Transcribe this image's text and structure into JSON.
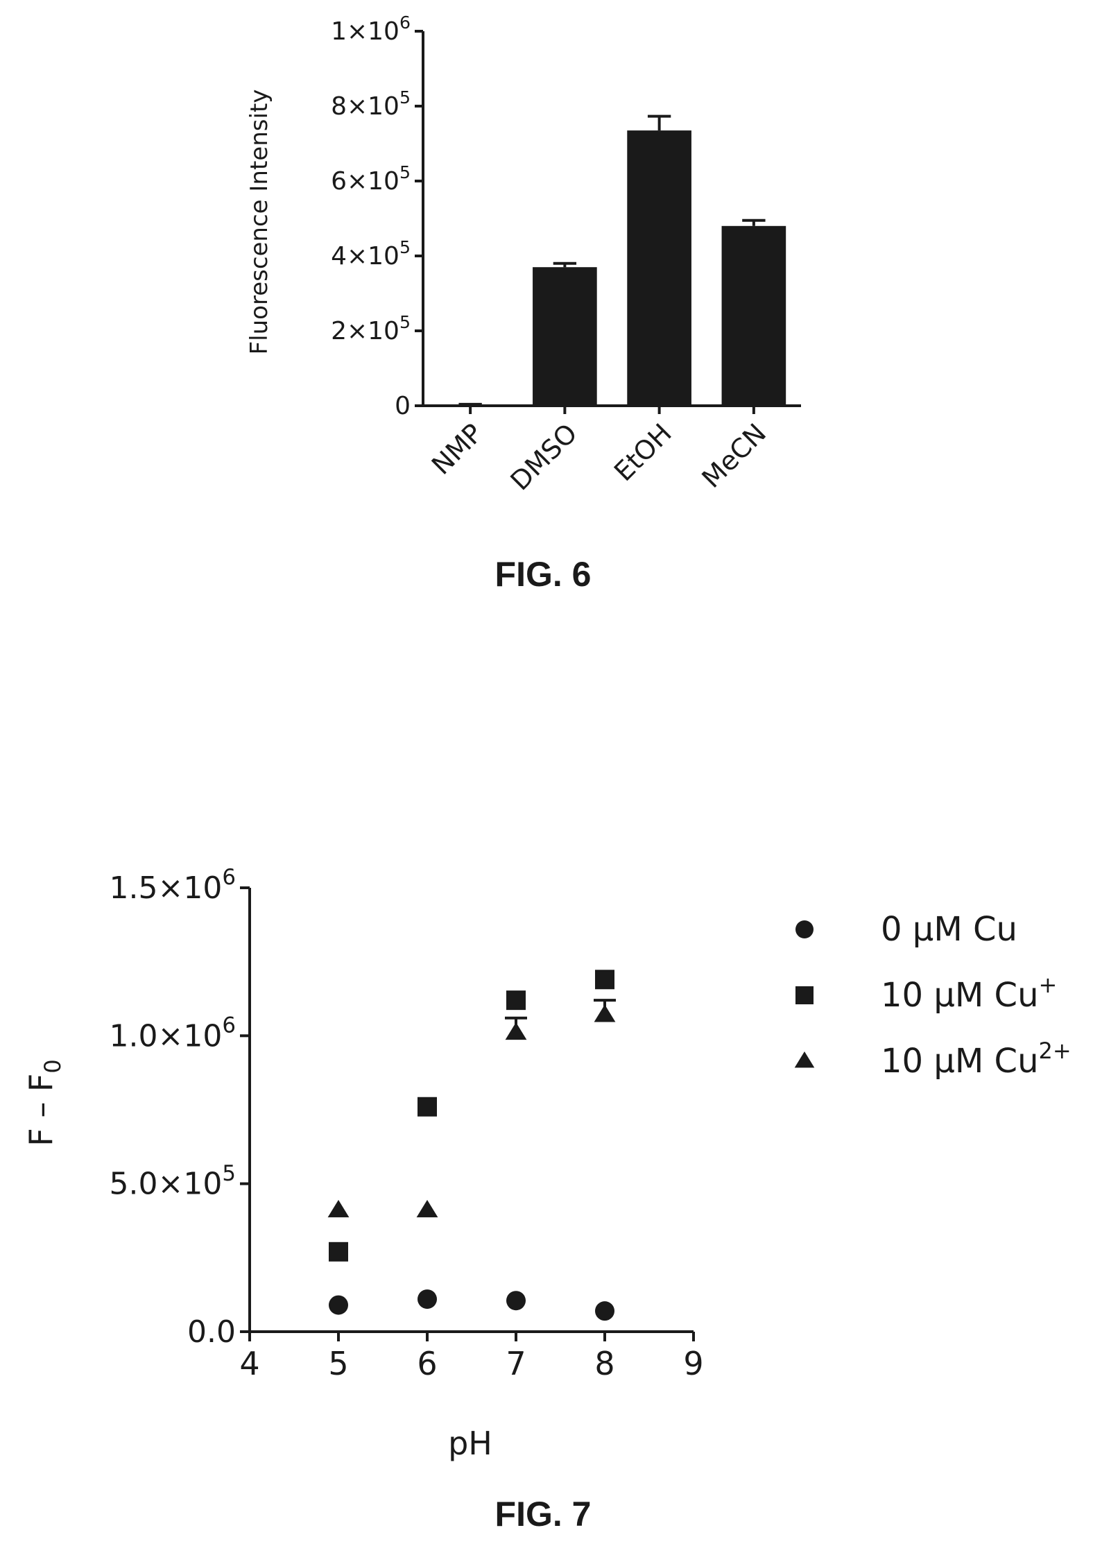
{
  "figures": [
    {
      "label": "FIG. 6"
    },
    {
      "label": "FIG. 7"
    }
  ],
  "chart_data": [
    {
      "type": "bar",
      "title": "",
      "xlabel": "",
      "ylabel": "Fluorescence Intensity",
      "ylim": [
        0,
        1000000
      ],
      "y_ticks": [
        {
          "value": 0,
          "mantissa": "0",
          "exponent": ""
        },
        {
          "value": 200000,
          "mantissa": "2×10",
          "exponent": "5"
        },
        {
          "value": 400000,
          "mantissa": "4×10",
          "exponent": "5"
        },
        {
          "value": 600000,
          "mantissa": "6×10",
          "exponent": "5"
        },
        {
          "value": 800000,
          "mantissa": "8×10",
          "exponent": "5"
        },
        {
          "value": 1000000,
          "mantissa": "1×10",
          "exponent": "6"
        }
      ],
      "categories": [
        "NMP",
        "DMSO",
        "EtOH",
        "MeCN"
      ],
      "values": [
        3000,
        370000,
        735000,
        480000
      ],
      "errors": [
        1000,
        10000,
        38000,
        15000
      ],
      "bar_color": "#1a1a1a",
      "legend": "none"
    },
    {
      "type": "scatter",
      "title": "",
      "xlabel": "pH",
      "ylabel": "F – F",
      "ylabel_sub": "0",
      "xlim": [
        4,
        9
      ],
      "ylim": [
        0,
        1500000
      ],
      "x_ticks": [
        "4",
        "5",
        "6",
        "7",
        "8",
        "9"
      ],
      "y_ticks": [
        {
          "value": 0,
          "mantissa": "0.0",
          "exponent": ""
        },
        {
          "value": 500000,
          "mantissa": "5.0×10",
          "exponent": "5"
        },
        {
          "value": 1000000,
          "mantissa": "1.0×10",
          "exponent": "6"
        },
        {
          "value": 1500000,
          "mantissa": "1.5×10",
          "exponent": "6"
        }
      ],
      "legend": "top-right",
      "series": [
        {
          "name": "0 μM Cu",
          "name_sup": "",
          "marker": "circle",
          "x": [
            5,
            6,
            7,
            8
          ],
          "y": [
            90000,
            110000,
            105000,
            70000
          ],
          "errors": [
            0,
            0,
            0,
            0
          ]
        },
        {
          "name": "10 μM Cu",
          "name_sup": "+",
          "marker": "square",
          "x": [
            5,
            6,
            7,
            8
          ],
          "y": [
            270000,
            760000,
            1120000,
            1190000
          ],
          "errors": [
            0,
            0,
            0,
            0
          ]
        },
        {
          "name": "10 μM Cu",
          "name_sup": "2+",
          "marker": "triangle",
          "x": [
            5,
            6,
            7,
            8
          ],
          "y": [
            410000,
            410000,
            1010000,
            1070000
          ],
          "errors": [
            0,
            0,
            50000,
            50000
          ]
        }
      ],
      "marker_color": "#1a1a1a"
    }
  ]
}
